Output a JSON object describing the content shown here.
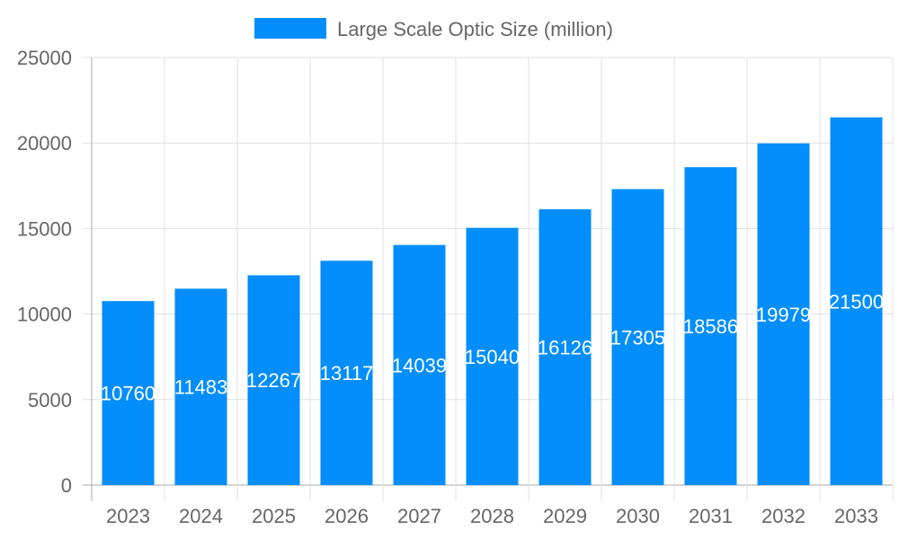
{
  "chart_data": {
    "type": "bar",
    "categories": [
      "2023",
      "2024",
      "2025",
      "2026",
      "2027",
      "2028",
      "2029",
      "2030",
      "2031",
      "2032",
      "2033"
    ],
    "series": [
      {
        "name": "Large Scale Optic Size (million)",
        "values": [
          10760,
          11483,
          12267,
          13117,
          14039,
          15040,
          16126,
          17305,
          18586,
          19979,
          21500
        ],
        "color": "#038efc"
      }
    ],
    "ylim": [
      0,
      25000
    ],
    "yticks": [
      0,
      5000,
      10000,
      15000,
      20000,
      25000
    ],
    "grid": true,
    "legend": "top-center",
    "data_labels": true,
    "colors": {
      "text": "#666666",
      "grid": "#e0e0e0",
      "label": "#ffffff"
    }
  }
}
